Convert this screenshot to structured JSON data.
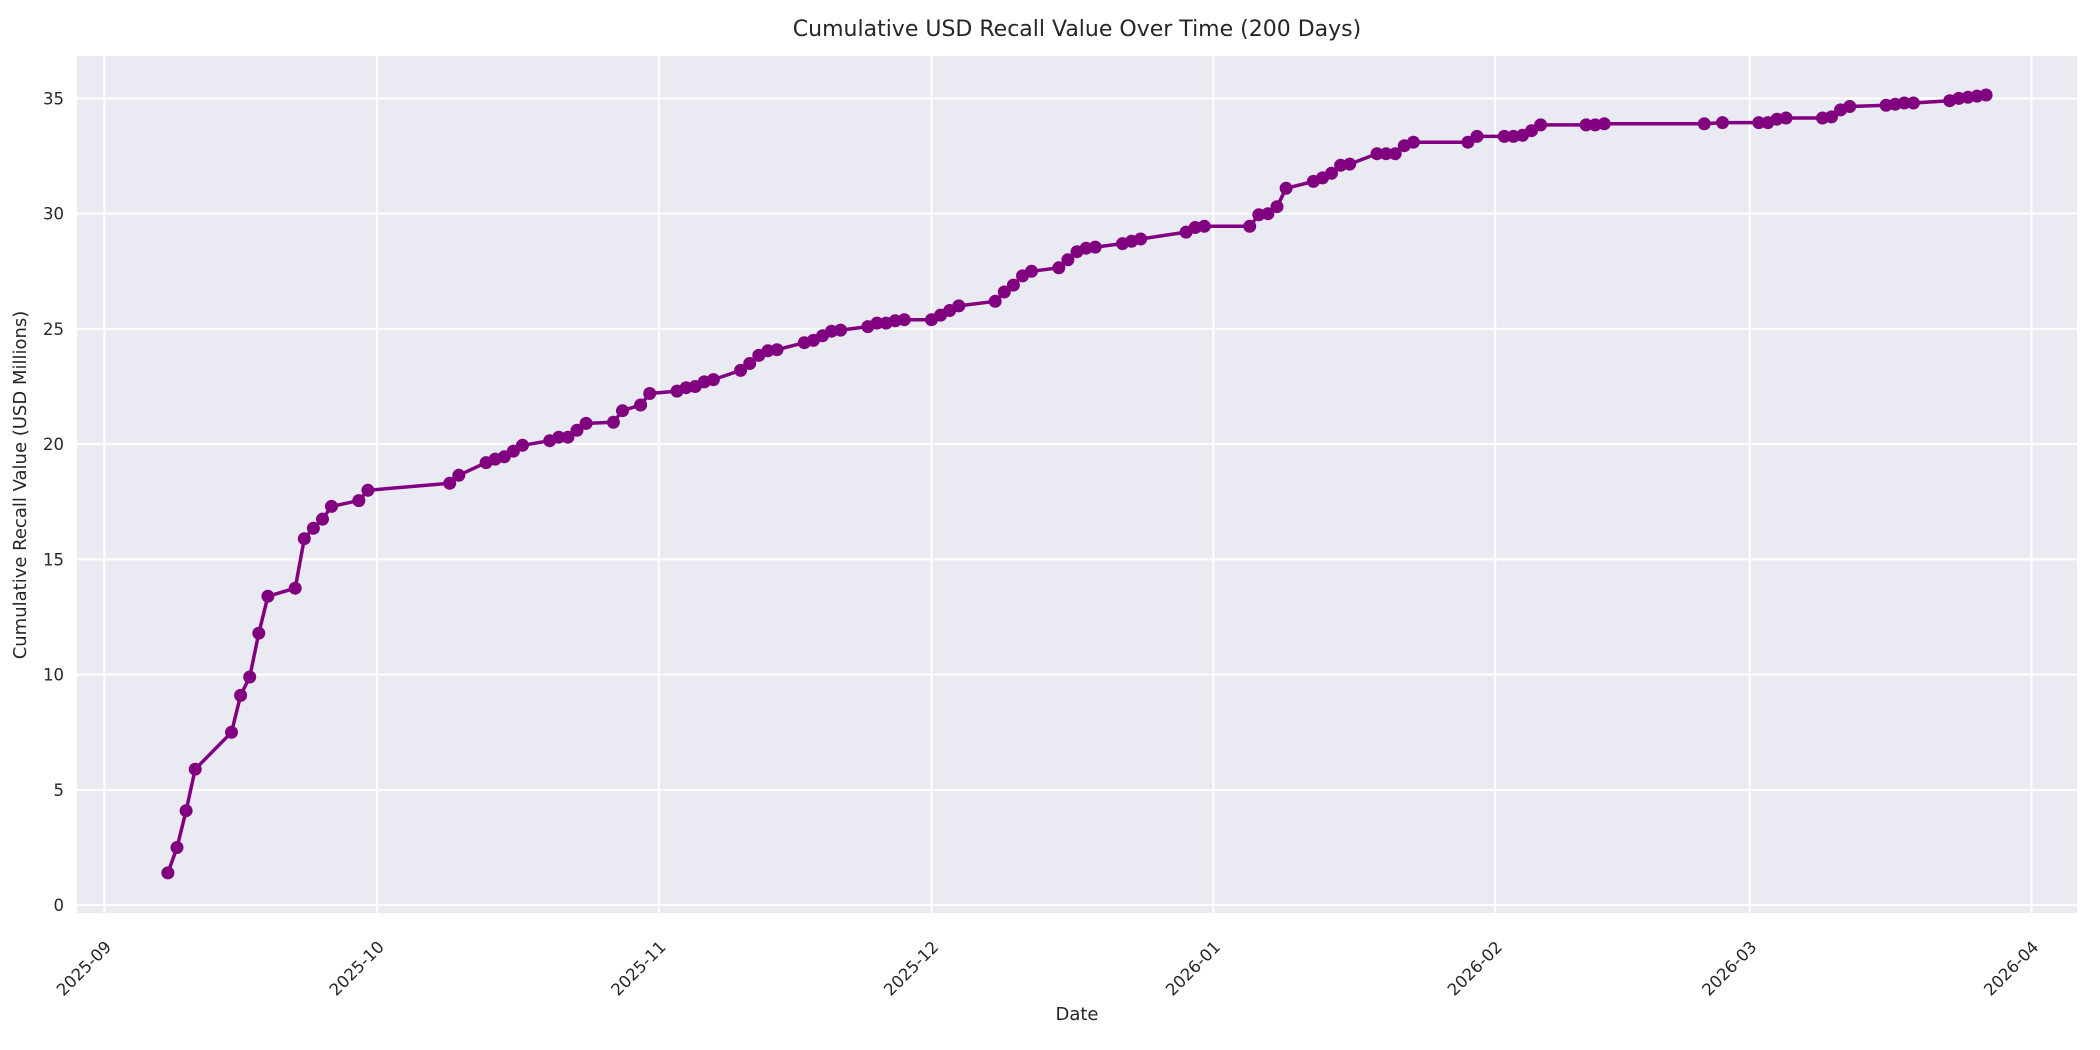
{
  "chart_data": {
    "type": "line",
    "title": "Cumulative USD Recall Value Over Time (200 Days)",
    "xlabel": "Date",
    "ylabel": "Cumulative Recall Value (USD Millions)",
    "legend_position": "none",
    "grid": true,
    "marker": "circle",
    "line_color": "#800080",
    "plot_bg_color": "#EAEAF2",
    "grid_color": "#FFFFFF",
    "text_color": "#262626",
    "figure_bg_color": "#FFFFFF",
    "x_tick_labels": [
      "2025-09",
      "2025-10",
      "2025-11",
      "2025-12",
      "2026-01",
      "2026-02",
      "2026-03",
      "2026-04"
    ],
    "x_tick_dates": [
      "2025-09-01",
      "2025-10-01",
      "2025-11-01",
      "2025-12-01",
      "2026-01-01",
      "2026-02-01",
      "2026-03-01",
      "2026-04-01"
    ],
    "x_tick_rotation_deg": 45,
    "y_ticks": [
      0,
      5,
      10,
      15,
      20,
      25,
      30,
      35
    ],
    "x_domain": [
      "2025-08-29",
      "2026-04-06"
    ],
    "y_domain": [
      -0.34,
      36.84
    ],
    "series_name": "Cumulative Recall Value",
    "points": [
      [
        "2025-09-08",
        1.4
      ],
      [
        "2025-09-09",
        2.5
      ],
      [
        "2025-09-10",
        4.1
      ],
      [
        "2025-09-11",
        5.9
      ],
      [
        "2025-09-15",
        7.5
      ],
      [
        "2025-09-16",
        9.1
      ],
      [
        "2025-09-17",
        9.9
      ],
      [
        "2025-09-18",
        11.8
      ],
      [
        "2025-09-19",
        13.4
      ],
      [
        "2025-09-22",
        13.75
      ],
      [
        "2025-09-23",
        15.9
      ],
      [
        "2025-09-24",
        16.35
      ],
      [
        "2025-09-25",
        16.75
      ],
      [
        "2025-09-26",
        17.3
      ],
      [
        "2025-09-29",
        17.55
      ],
      [
        "2025-09-30",
        18.0
      ],
      [
        "2025-10-09",
        18.3
      ],
      [
        "2025-10-10",
        18.65
      ],
      [
        "2025-10-13",
        19.2
      ],
      [
        "2025-10-14",
        19.35
      ],
      [
        "2025-10-15",
        19.45
      ],
      [
        "2025-10-16",
        19.7
      ],
      [
        "2025-10-17",
        19.95
      ],
      [
        "2025-10-20",
        20.15
      ],
      [
        "2025-10-21",
        20.3
      ],
      [
        "2025-10-22",
        20.3
      ],
      [
        "2025-10-23",
        20.6
      ],
      [
        "2025-10-24",
        20.9
      ],
      [
        "2025-10-27",
        20.95
      ],
      [
        "2025-10-28",
        21.45
      ],
      [
        "2025-10-30",
        21.7
      ],
      [
        "2025-10-31",
        22.2
      ],
      [
        "2025-11-03",
        22.3
      ],
      [
        "2025-11-04",
        22.45
      ],
      [
        "2025-11-05",
        22.5
      ],
      [
        "2025-11-06",
        22.7
      ],
      [
        "2025-11-07",
        22.8
      ],
      [
        "2025-11-10",
        23.2
      ],
      [
        "2025-11-11",
        23.5
      ],
      [
        "2025-11-12",
        23.85
      ],
      [
        "2025-11-13",
        24.05
      ],
      [
        "2025-11-14",
        24.1
      ],
      [
        "2025-11-17",
        24.4
      ],
      [
        "2025-11-18",
        24.5
      ],
      [
        "2025-11-19",
        24.7
      ],
      [
        "2025-11-20",
        24.9
      ],
      [
        "2025-11-21",
        24.95
      ],
      [
        "2025-11-24",
        25.1
      ],
      [
        "2025-11-25",
        25.25
      ],
      [
        "2025-11-26",
        25.25
      ],
      [
        "2025-11-27",
        25.35
      ],
      [
        "2025-11-28",
        25.4
      ],
      [
        "2025-12-01",
        25.4
      ],
      [
        "2025-12-02",
        25.6
      ],
      [
        "2025-12-03",
        25.8
      ],
      [
        "2025-12-04",
        26.0
      ],
      [
        "2025-12-08",
        26.2
      ],
      [
        "2025-12-09",
        26.6
      ],
      [
        "2025-12-10",
        26.9
      ],
      [
        "2025-12-11",
        27.3
      ],
      [
        "2025-12-12",
        27.5
      ],
      [
        "2025-12-15",
        27.65
      ],
      [
        "2025-12-16",
        28.0
      ],
      [
        "2025-12-17",
        28.35
      ],
      [
        "2025-12-18",
        28.5
      ],
      [
        "2025-12-19",
        28.55
      ],
      [
        "2025-12-22",
        28.7
      ],
      [
        "2025-12-23",
        28.8
      ],
      [
        "2025-12-24",
        28.9
      ],
      [
        "2025-12-29",
        29.2
      ],
      [
        "2025-12-30",
        29.4
      ],
      [
        "2025-12-31",
        29.45
      ],
      [
        "2026-01-05",
        29.45
      ],
      [
        "2026-01-06",
        29.95
      ],
      [
        "2026-01-07",
        30.0
      ],
      [
        "2026-01-08",
        30.3
      ],
      [
        "2026-01-09",
        31.1
      ],
      [
        "2026-01-12",
        31.4
      ],
      [
        "2026-01-13",
        31.55
      ],
      [
        "2026-01-14",
        31.75
      ],
      [
        "2026-01-15",
        32.1
      ],
      [
        "2026-01-16",
        32.15
      ],
      [
        "2026-01-19",
        32.6
      ],
      [
        "2026-01-20",
        32.6
      ],
      [
        "2026-01-21",
        32.6
      ],
      [
        "2026-01-22",
        32.95
      ],
      [
        "2026-01-23",
        33.1
      ],
      [
        "2026-01-29",
        33.1
      ],
      [
        "2026-01-30",
        33.35
      ],
      [
        "2026-02-02",
        33.35
      ],
      [
        "2026-02-03",
        33.35
      ],
      [
        "2026-02-04",
        33.4
      ],
      [
        "2026-02-05",
        33.6
      ],
      [
        "2026-02-06",
        33.85
      ],
      [
        "2026-02-11",
        33.85
      ],
      [
        "2026-02-12",
        33.85
      ],
      [
        "2026-02-13",
        33.9
      ],
      [
        "2026-02-24",
        33.9
      ],
      [
        "2026-02-26",
        33.95
      ],
      [
        "2026-03-02",
        33.95
      ],
      [
        "2026-03-03",
        33.95
      ],
      [
        "2026-03-04",
        34.1
      ],
      [
        "2026-03-05",
        34.15
      ],
      [
        "2026-03-09",
        34.15
      ],
      [
        "2026-03-10",
        34.2
      ],
      [
        "2026-03-11",
        34.5
      ],
      [
        "2026-03-12",
        34.65
      ],
      [
        "2026-03-16",
        34.7
      ],
      [
        "2026-03-17",
        34.75
      ],
      [
        "2026-03-18",
        34.8
      ],
      [
        "2026-03-19",
        34.8
      ],
      [
        "2026-03-23",
        34.9
      ],
      [
        "2026-03-24",
        35.0
      ],
      [
        "2026-03-25",
        35.05
      ],
      [
        "2026-03-26",
        35.1
      ],
      [
        "2026-03-27",
        35.15
      ]
    ]
  }
}
